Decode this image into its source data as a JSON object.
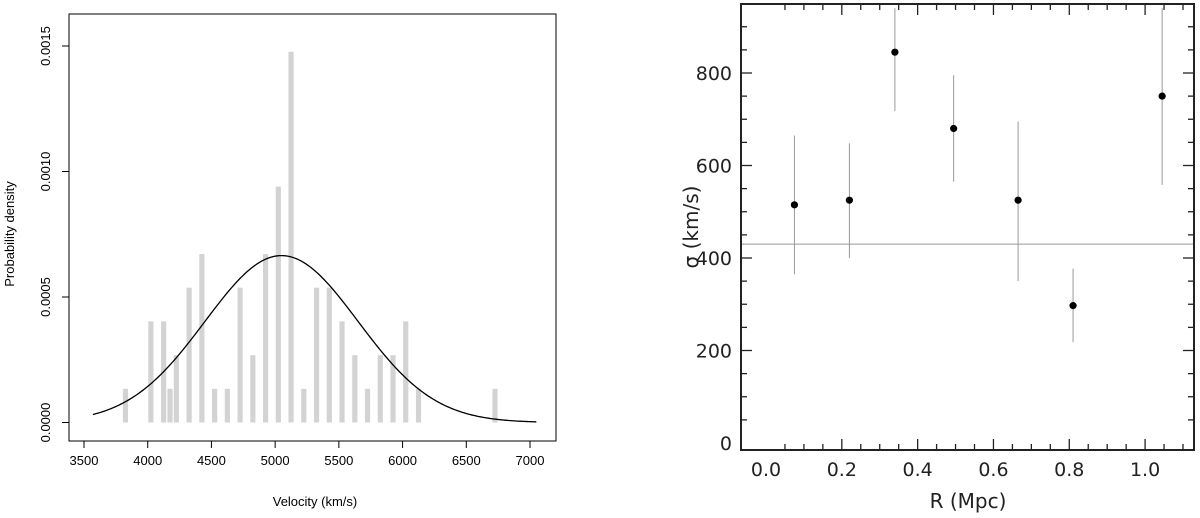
{
  "chart_data": [
    {
      "type": "bar",
      "subtype": "histogram-with-gaussian",
      "title": "",
      "xlabel": "Velocity (km/s)",
      "ylabel": "Probability density",
      "xlim": [
        3500,
        7100
      ],
      "ylim": [
        0,
        0.0015
      ],
      "xticks": [
        "3500",
        "4000",
        "4500",
        "5000",
        "5500",
        "6000",
        "6500",
        "7000"
      ],
      "yticks": [
        "0.0000",
        "0.0005",
        "0.0010",
        "0.0015"
      ],
      "bin_width": 50,
      "bins": [
        {
          "x0": 3800,
          "density": 0.000134
        },
        {
          "x0": 4000,
          "density": 0.000403
        },
        {
          "x0": 4100,
          "density": 0.000403
        },
        {
          "x0": 4150,
          "density": 0.000134
        },
        {
          "x0": 4200,
          "density": 0.000268
        },
        {
          "x0": 4300,
          "density": 0.000537
        },
        {
          "x0": 4400,
          "density": 0.000671
        },
        {
          "x0": 4500,
          "density": 0.000134
        },
        {
          "x0": 4600,
          "density": 0.000134
        },
        {
          "x0": 4700,
          "density": 0.000537
        },
        {
          "x0": 4800,
          "density": 0.000268
        },
        {
          "x0": 4900,
          "density": 0.000671
        },
        {
          "x0": 5000,
          "density": 0.00094
        },
        {
          "x0": 5100,
          "density": 0.001477
        },
        {
          "x0": 5200,
          "density": 0.000134
        },
        {
          "x0": 5300,
          "density": 0.000537
        },
        {
          "x0": 5400,
          "density": 0.000537
        },
        {
          "x0": 5500,
          "density": 0.000403
        },
        {
          "x0": 5600,
          "density": 0.000268
        },
        {
          "x0": 5700,
          "density": 0.000134
        },
        {
          "x0": 5800,
          "density": 0.000268
        },
        {
          "x0": 5900,
          "density": 0.000268
        },
        {
          "x0": 6000,
          "density": 0.000403
        },
        {
          "x0": 6100,
          "density": 0.000134
        },
        {
          "x0": 6700,
          "density": 0.000134
        }
      ],
      "gaussian": {
        "mean": 5050,
        "sigma": 600,
        "xrange": [
          3570,
          7050
        ]
      },
      "colors": {
        "bars": "#d3d3d3",
        "curve": "#000000"
      }
    },
    {
      "type": "scatter",
      "subtype": "points-with-errorbars",
      "title": "",
      "xlabel": "R (Mpc)",
      "ylabel": "σ (km/s)",
      "xlim": [
        0.0,
        1.15
      ],
      "ylim": [
        -20,
        940
      ],
      "xticks": [
        "0.0",
        "0.2",
        "0.4",
        "0.6",
        "0.8",
        "1.0"
      ],
      "yticks": [
        "0",
        "200",
        "400",
        "600",
        "800"
      ],
      "points": [
        {
          "x": 0.075,
          "y": 515,
          "lo": 365,
          "hi": 665
        },
        {
          "x": 0.22,
          "y": 525,
          "lo": 400,
          "hi": 648
        },
        {
          "x": 0.34,
          "y": 845,
          "lo": 718,
          "hi": 940
        },
        {
          "x": 0.495,
          "y": 680,
          "lo": 565,
          "hi": 795
        },
        {
          "x": 0.665,
          "y": 525,
          "lo": 350,
          "hi": 695
        },
        {
          "x": 0.81,
          "y": 297,
          "lo": 218,
          "hi": 377
        },
        {
          "x": 1.045,
          "y": 750,
          "lo": 558,
          "hi": 940
        }
      ],
      "reference_line": {
        "y": 430
      },
      "colors": {
        "points": "#000000",
        "errorbars": "#999999",
        "reference": "#999999",
        "axes": "#222222"
      }
    }
  ]
}
